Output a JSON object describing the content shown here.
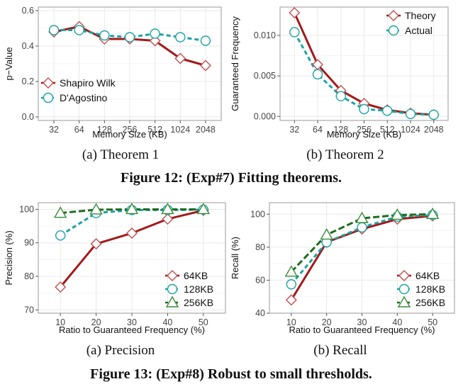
{
  "colors": {
    "red_series": "#a3191b",
    "red_marker": "#c0504d",
    "teal_series": "#1aa3a3",
    "green_series": "#1e6b1e",
    "green_marker": "#3a8a3a",
    "panel_border": "#9a9a9a",
    "grid": "#e8e8e8"
  },
  "figure12": {
    "caption": "Figure 12: (Exp#7) Fitting theorems.",
    "panel_a": {
      "subcaption": "(a) Theorem 1"
    },
    "panel_b": {
      "subcaption": "(b) Theorem 2"
    }
  },
  "figure13": {
    "caption": "Figure 13: (Exp#8) Robust to small thresholds.",
    "panel_a": {
      "subcaption": "(a) Precision"
    },
    "panel_b": {
      "subcaption": "(b) Recall"
    }
  },
  "chart_data": [
    {
      "id": "f12a",
      "type": "line",
      "categories": [
        "32",
        "64",
        "128",
        "256",
        "512",
        "1024",
        "2048"
      ],
      "xlabel": "Memory Size (KB)",
      "ylabel": "p−Value",
      "ylim": [
        -0.02,
        0.62
      ],
      "yticks": [
        0.0,
        0.2,
        0.4,
        0.6
      ],
      "ytick_labels": [
        "0.0",
        "0.2",
        "0.4",
        "0.6"
      ],
      "grid": true,
      "legend_position": "bottom-left",
      "series": [
        {
          "name": "Shapiro Wilk",
          "values": [
            0.48,
            0.51,
            0.44,
            0.44,
            0.43,
            0.33,
            0.29
          ],
          "color": "#a3191b",
          "marker": "diamond",
          "marker_color": "#c0504d",
          "dash": "solid"
        },
        {
          "name": "D'Agostino",
          "values": [
            0.49,
            0.49,
            0.46,
            0.45,
            0.47,
            0.45,
            0.43
          ],
          "color": "#1aa3a3",
          "marker": "circle",
          "marker_color": "#1aa3a3",
          "dash": "dashed"
        }
      ]
    },
    {
      "id": "f12b",
      "type": "line",
      "categories": [
        "32",
        "64",
        "128",
        "256",
        "512",
        "1024",
        "2048"
      ],
      "xlabel": "Memory Size (KB)",
      "ylabel": "Guaranteed Frequency",
      "ylim": [
        -0.0005,
        0.0135
      ],
      "yticks": [
        0.0,
        0.005,
        0.01
      ],
      "ytick_labels": [
        "0.000",
        "0.005",
        "0.010"
      ],
      "grid": true,
      "legend_position": "top-right",
      "series": [
        {
          "name": "Theory",
          "values": [
            0.0128,
            0.0064,
            0.0032,
            0.0016,
            0.0008,
            0.0004,
            0.0002
          ],
          "color": "#a3191b",
          "marker": "diamond",
          "marker_color": "#c0504d",
          "dash": "solid"
        },
        {
          "name": "Actual",
          "values": [
            0.0104,
            0.0052,
            0.0025,
            0.0009,
            0.0007,
            0.0003,
            0.0002
          ],
          "color": "#1aa3a3",
          "marker": "circle",
          "marker_color": "#1aa3a3",
          "dash": "dashed"
        }
      ]
    },
    {
      "id": "f13a",
      "type": "line",
      "categories": [
        "10",
        "20",
        "30",
        "40",
        "50"
      ],
      "xlabel": "Ratio to Guaranteed Frequency (%)",
      "ylabel": "Precision (%)",
      "ylim": [
        69,
        102
      ],
      "yticks": [
        70,
        80,
        90,
        100
      ],
      "ytick_labels": [
        "70",
        "80",
        "90",
        "100"
      ],
      "grid": true,
      "legend_position": "bottom-right",
      "series": [
        {
          "name": "64KB",
          "values": [
            76.8,
            89.7,
            92.9,
            97.1,
            99.7
          ],
          "color": "#a3191b",
          "marker": "diamond",
          "marker_color": "#c0504d",
          "dash": "solid"
        },
        {
          "name": "128KB",
          "values": [
            92.2,
            98.9,
            99.8,
            99.8,
            99.9
          ],
          "color": "#1aa3a3",
          "marker": "circle",
          "marker_color": "#1aa3a3",
          "dash": "dashed"
        },
        {
          "name": "256KB",
          "values": [
            98.9,
            99.9,
            100.0,
            100.0,
            100.0
          ],
          "color": "#1e6b1e",
          "marker": "triangle",
          "marker_color": "#3a8a3a",
          "dash": "longdash"
        }
      ]
    },
    {
      "id": "f13b",
      "type": "line",
      "categories": [
        "10",
        "20",
        "30",
        "40",
        "50"
      ],
      "xlabel": "Ratio to Guaranteed Frequency (%)",
      "ylabel": "Recall (%)",
      "ylim": [
        40,
        107
      ],
      "yticks": [
        40,
        60,
        80,
        100
      ],
      "ytick_labels": [
        "40",
        "60",
        "80",
        "100"
      ],
      "grid": true,
      "legend_position": "bottom-right",
      "series": [
        {
          "name": "64KB",
          "values": [
            48.0,
            83.0,
            91.0,
            97.0,
            99.0
          ],
          "color": "#a3191b",
          "marker": "diamond",
          "marker_color": "#c0504d",
          "dash": "solid"
        },
        {
          "name": "128KB",
          "values": [
            57.5,
            83.0,
            92.0,
            98.5,
            99.5
          ],
          "color": "#1aa3a3",
          "marker": "circle",
          "marker_color": "#1aa3a3",
          "dash": "dashed"
        },
        {
          "name": "256KB",
          "values": [
            65.0,
            87.5,
            97.5,
            99.5,
            100.0
          ],
          "color": "#1e6b1e",
          "marker": "triangle",
          "marker_color": "#3a8a3a",
          "dash": "longdash"
        }
      ]
    }
  ]
}
